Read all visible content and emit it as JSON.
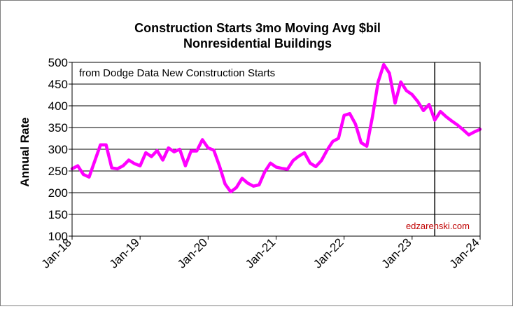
{
  "chart_data": {
    "type": "line",
    "title": "Construction Starts 3mo Moving Avg $bil",
    "subtitle": "Nonresidential Buildings",
    "xlabel": "",
    "ylabel": "Annual Rate",
    "ylim": [
      100,
      500
    ],
    "yticks": [
      100,
      150,
      200,
      250,
      300,
      350,
      400,
      450,
      500
    ],
    "xlim": [
      0,
      72
    ],
    "xtick_positions": [
      0,
      12,
      24,
      36,
      48,
      60,
      72
    ],
    "xtick_labels": [
      "Jan-18",
      "Jan-19",
      "Jan-20",
      "Jan-21",
      "Jan-22",
      "Jan-23",
      "Jan-24"
    ],
    "grid": "horizontal",
    "annotation": "from Dodge Data New Construction Starts",
    "credit": "edzarenski.com",
    "vline_at": 64,
    "series": [
      {
        "name": "Nonresidential Buildings 3mo Moving Avg",
        "color": "#ff00ff",
        "x": [
          0,
          1,
          2,
          3,
          4,
          5,
          6,
          7,
          8,
          9,
          10,
          11,
          12,
          13,
          14,
          15,
          16,
          17,
          18,
          19,
          20,
          21,
          22,
          23,
          24,
          25,
          26,
          27,
          28,
          29,
          30,
          31,
          32,
          33,
          34,
          35,
          36,
          37,
          38,
          39,
          40,
          41,
          42,
          43,
          44,
          45,
          46,
          47,
          48,
          49,
          50,
          51,
          52,
          53,
          54,
          55,
          56,
          57,
          58,
          59,
          60,
          61,
          62,
          63,
          64,
          65,
          66,
          67,
          68,
          69,
          70,
          71,
          72
        ],
        "values": [
          255,
          262,
          242,
          236,
          273,
          310,
          310,
          257,
          255,
          262,
          275,
          267,
          262,
          292,
          283,
          297,
          275,
          303,
          294,
          300,
          262,
          296,
          296,
          322,
          303,
          298,
          262,
          220,
          202,
          212,
          233,
          222,
          215,
          218,
          248,
          268,
          259,
          256,
          254,
          274,
          284,
          292,
          268,
          260,
          274,
          298,
          318,
          325,
          378,
          382,
          358,
          315,
          307,
          375,
          455,
          495,
          475,
          406,
          455,
          435,
          426,
          410,
          389,
          403,
          367,
          387,
          375,
          365,
          356,
          345,
          333,
          340,
          346
        ]
      }
    ]
  }
}
